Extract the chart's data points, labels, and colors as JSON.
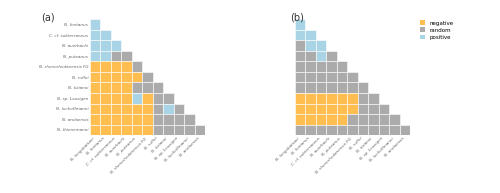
{
  "species_yaxis": [
    "N. fontanus",
    "C. cf. subterraneus",
    "N. auerbachi",
    "N. puteanus",
    "N. rhenorhodanensis FG",
    "N. ruffoi",
    "N. tizianoi",
    "N. sp. Louzigen",
    "N. luchoffmanni",
    "N. arolaensis",
    "N. thienemanni"
  ],
  "species_xaxis": [
    "N. longobattani",
    "N. fontanus",
    "C. cf. subterraneus",
    "N. auerbachi",
    "N. puteanus",
    "N. rhenorhodanensis FG",
    "N. ruffoi",
    "N. tizianoi",
    "N. sp. Louzigen",
    "N. luchoffmanni",
    "N. arolaensis"
  ],
  "color_negative": "#FFBE4F",
  "color_random": "#ABABAB",
  "color_positive": "#A8D4E6",
  "color_empty": "#FFFFFF",
  "panel_a_label": "(a)",
  "panel_b_label": "(b)",
  "legend_labels": [
    "negative",
    "random",
    "positive"
  ],
  "matrix_a": [
    [
      2,
      0,
      0,
      0,
      0,
      0,
      0,
      0,
      0,
      0,
      0
    ],
    [
      2,
      2,
      0,
      0,
      0,
      0,
      0,
      0,
      0,
      0,
      0
    ],
    [
      2,
      2,
      2,
      0,
      0,
      0,
      0,
      0,
      0,
      0,
      0
    ],
    [
      2,
      2,
      1,
      1,
      0,
      0,
      0,
      0,
      0,
      0,
      0
    ],
    [
      3,
      3,
      3,
      3,
      1,
      0,
      0,
      0,
      0,
      0,
      0
    ],
    [
      3,
      3,
      3,
      3,
      3,
      1,
      0,
      0,
      0,
      0,
      0
    ],
    [
      3,
      3,
      3,
      3,
      1,
      1,
      1,
      0,
      0,
      0,
      0
    ],
    [
      3,
      3,
      3,
      3,
      2,
      3,
      1,
      1,
      0,
      0,
      0
    ],
    [
      3,
      3,
      3,
      3,
      3,
      3,
      1,
      2,
      1,
      0,
      0
    ],
    [
      3,
      3,
      3,
      3,
      3,
      3,
      1,
      1,
      1,
      1,
      0
    ],
    [
      3,
      3,
      3,
      3,
      3,
      3,
      1,
      1,
      1,
      1,
      1
    ]
  ],
  "matrix_b": [
    [
      2,
      0,
      0,
      0,
      0,
      0,
      0,
      0,
      0,
      0,
      0
    ],
    [
      2,
      2,
      0,
      0,
      0,
      0,
      0,
      0,
      0,
      0,
      0
    ],
    [
      1,
      2,
      2,
      0,
      0,
      0,
      0,
      0,
      0,
      0,
      0
    ],
    [
      1,
      1,
      2,
      1,
      0,
      0,
      0,
      0,
      0,
      0,
      0
    ],
    [
      1,
      1,
      1,
      1,
      1,
      0,
      0,
      0,
      0,
      0,
      0
    ],
    [
      1,
      1,
      1,
      1,
      1,
      1,
      0,
      0,
      0,
      0,
      0
    ],
    [
      1,
      1,
      1,
      1,
      1,
      1,
      1,
      0,
      0,
      0,
      0
    ],
    [
      3,
      3,
      3,
      3,
      3,
      3,
      1,
      1,
      0,
      0,
      0
    ],
    [
      3,
      3,
      3,
      3,
      3,
      3,
      1,
      1,
      1,
      0,
      0
    ],
    [
      3,
      3,
      3,
      3,
      3,
      1,
      1,
      1,
      1,
      1,
      0
    ],
    [
      1,
      1,
      1,
      1,
      1,
      1,
      1,
      1,
      1,
      1,
      1
    ]
  ]
}
